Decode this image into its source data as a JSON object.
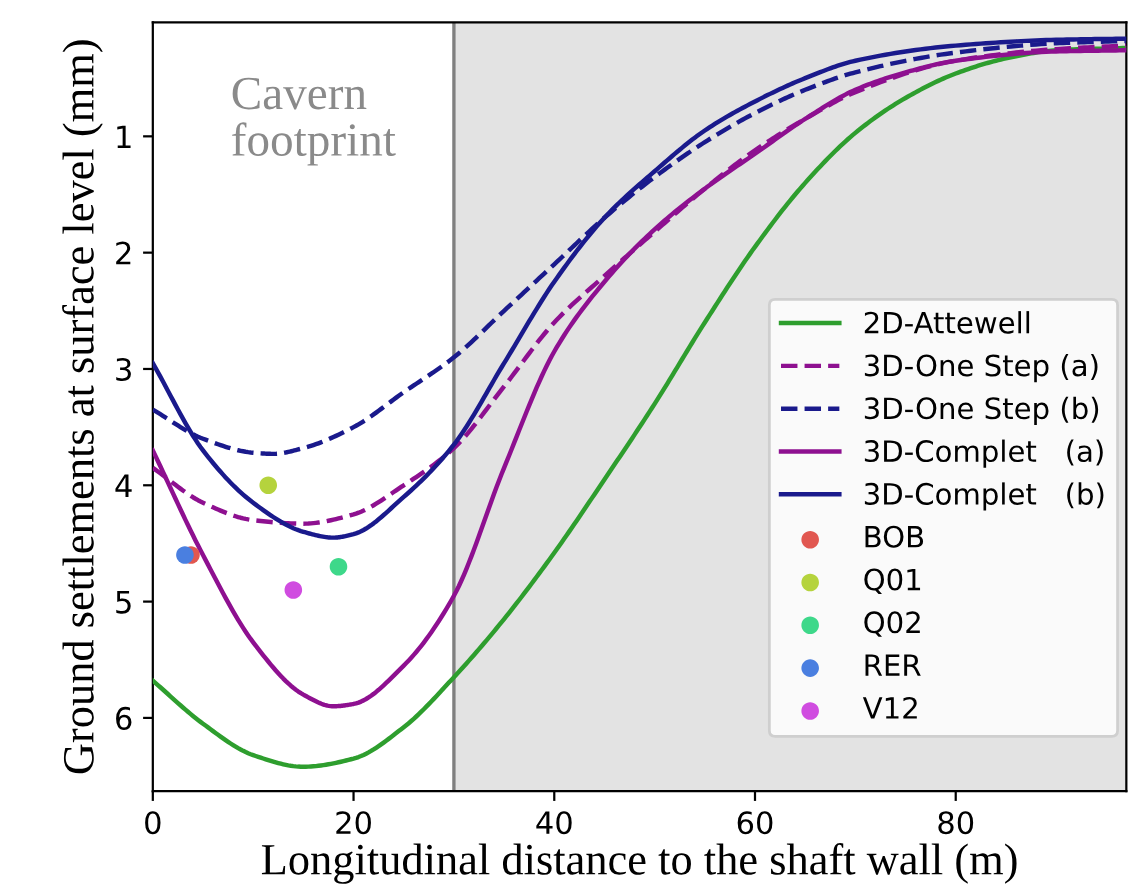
{
  "chart_data": {
    "type": "line",
    "xlabel": "Longitudinal distance to the shaft wall (m)",
    "ylabel": "Ground settlements at surface level (mm)",
    "xlim": [
      0,
      97
    ],
    "ylim": [
      6.63,
      0.02
    ],
    "xticks": [
      0,
      20,
      40,
      60,
      80
    ],
    "yticks": [
      1,
      2,
      3,
      4,
      5,
      6
    ],
    "grid": false,
    "legend": "bottom right",
    "annotations": [
      "Cavern\nfootprint"
    ],
    "bands": [
      {
        "axis": "x",
        "from": 30,
        "to": 97,
        "color": "#e3e3e3"
      }
    ],
    "ref_lines": [
      {
        "axis": "x",
        "value": 30,
        "color": "#808080",
        "line_style": "solid"
      }
    ],
    "series": [
      {
        "name": "2D-Attewell",
        "color": "#2e9e2e",
        "line_style": "solid",
        "x": [
          0,
          5,
          10,
          15,
          20,
          25,
          30,
          35,
          40,
          45,
          50,
          55,
          60,
          65,
          70,
          75,
          80,
          85,
          90,
          97
        ],
        "values": [
          5.68,
          6.05,
          6.32,
          6.42,
          6.35,
          6.08,
          5.65,
          5.15,
          4.58,
          3.95,
          3.3,
          2.6,
          1.95,
          1.4,
          0.97,
          0.67,
          0.46,
          0.33,
          0.26,
          0.24
        ]
      },
      {
        "name": "3D-One Step (a)",
        "color": "#8e1090",
        "line_style": "dashed",
        "x": [
          0,
          5,
          10,
          15,
          20,
          25,
          30,
          35,
          40,
          45,
          50,
          55,
          60,
          65,
          70,
          80,
          90,
          97
        ],
        "values": [
          3.85,
          4.15,
          4.3,
          4.33,
          4.25,
          4.0,
          3.68,
          3.15,
          2.6,
          2.2,
          1.82,
          1.45,
          1.12,
          0.85,
          0.62,
          0.35,
          0.25,
          0.22
        ]
      },
      {
        "name": "3D-One Step (b)",
        "color": "#1a1a8c",
        "line_style": "dashed",
        "x": [
          0,
          5,
          10,
          12,
          15,
          20,
          25,
          30,
          35,
          40,
          45,
          50,
          55,
          60,
          65,
          70,
          80,
          90,
          97
        ],
        "values": [
          3.35,
          3.6,
          3.72,
          3.73,
          3.68,
          3.5,
          3.2,
          2.9,
          2.5,
          2.1,
          1.7,
          1.35,
          1.05,
          0.8,
          0.6,
          0.45,
          0.28,
          0.2,
          0.18
        ]
      },
      {
        "name": "3D-Complet   (a)",
        "color": "#8e1090",
        "line_style": "solid",
        "x": [
          0,
          5,
          10,
          15,
          18,
          20,
          25,
          30,
          35,
          40,
          45,
          50,
          55,
          60,
          65,
          70,
          75,
          80,
          90,
          97
        ],
        "values": [
          3.7,
          4.6,
          5.35,
          5.8,
          5.9,
          5.88,
          5.55,
          4.95,
          3.85,
          2.85,
          2.25,
          1.8,
          1.45,
          1.15,
          0.85,
          0.6,
          0.45,
          0.35,
          0.27,
          0.26
        ]
      },
      {
        "name": "3D-Complet   (b)",
        "color": "#1a1a8c",
        "line_style": "solid",
        "x": [
          0,
          5,
          10,
          15,
          18,
          20,
          25,
          30,
          35,
          40,
          45,
          50,
          55,
          60,
          65,
          70,
          80,
          90,
          97
        ],
        "values": [
          2.95,
          3.7,
          4.15,
          4.4,
          4.45,
          4.42,
          4.1,
          3.65,
          2.95,
          2.25,
          1.7,
          1.3,
          0.95,
          0.7,
          0.5,
          0.35,
          0.22,
          0.17,
          0.16
        ]
      },
      {
        "name": "BOB",
        "type": "scatter",
        "color": "#e15750",
        "x": [
          3.8
        ],
        "values": [
          4.6
        ]
      },
      {
        "name": "RER",
        "type": "scatter",
        "color": "#4a7fe0",
        "x": [
          3.2
        ],
        "values": [
          4.6
        ]
      },
      {
        "name": "Q01",
        "type": "scatter",
        "color": "#b5d33d",
        "x": [
          11.5
        ],
        "values": [
          4.0
        ]
      },
      {
        "name": "V12",
        "type": "scatter",
        "color": "#d04ce0",
        "x": [
          14
        ],
        "values": [
          4.9
        ]
      },
      {
        "name": "Q02",
        "type": "scatter",
        "color": "#3ed88a",
        "x": [
          18.5
        ],
        "values": [
          4.7
        ]
      }
    ]
  }
}
